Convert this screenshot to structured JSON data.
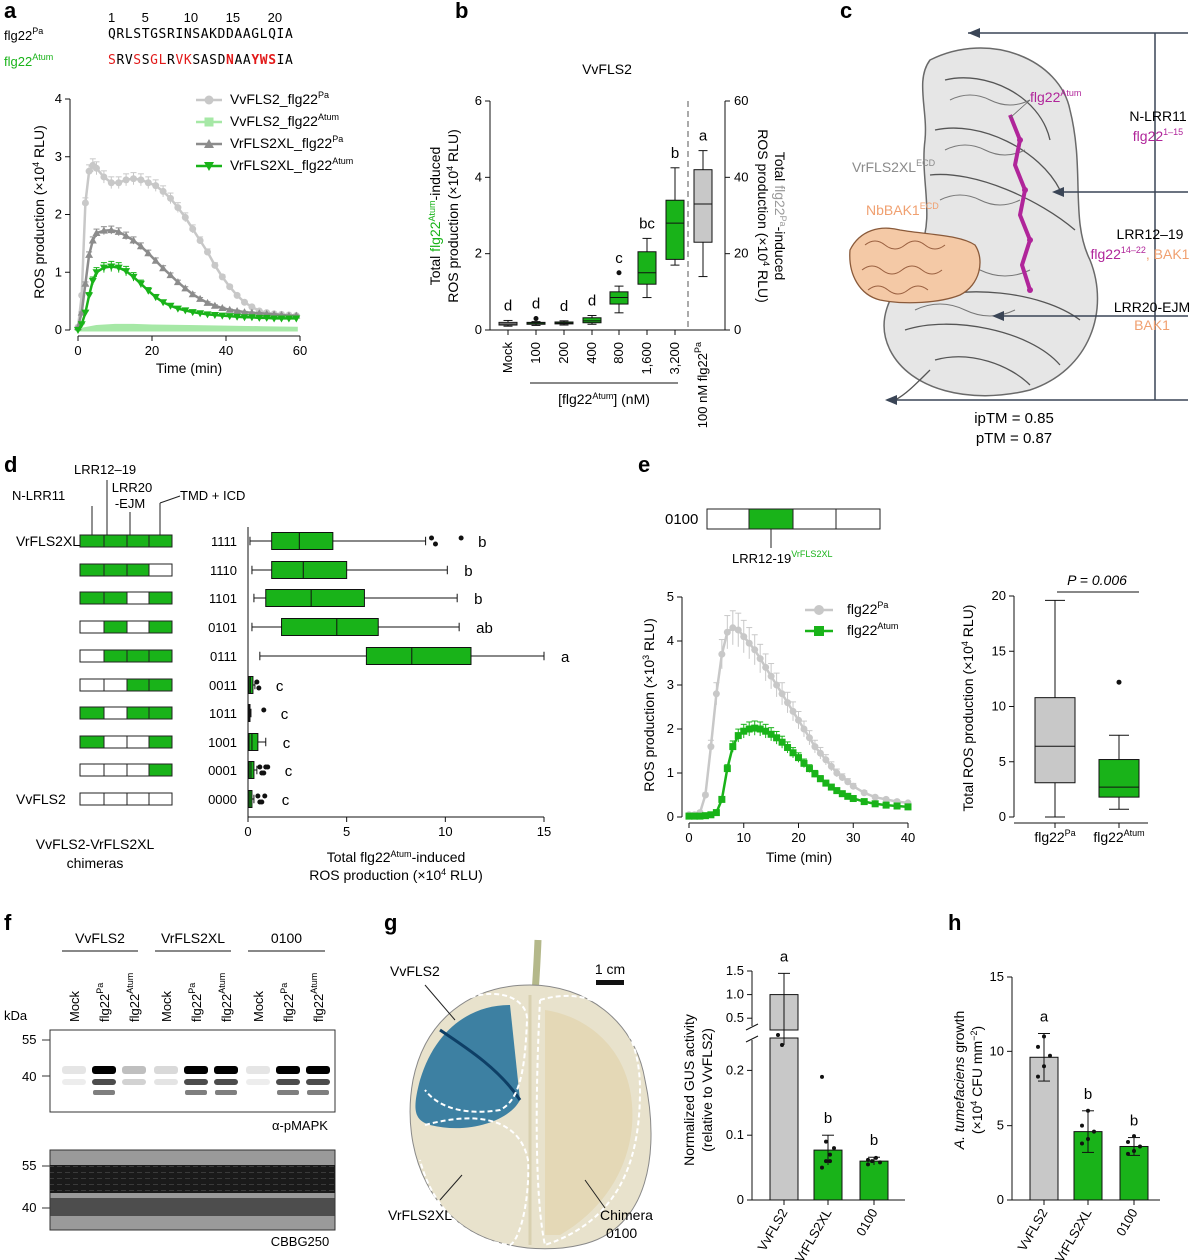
{
  "colors": {
    "green": "#19b319",
    "green_light": "#a6e8a6",
    "grey": "#c8c8c8",
    "grey_dark": "#8c8c8c",
    "magenta": "#b0259a",
    "orange": "#f0a878",
    "red": "#e21a1a"
  },
  "panel_a": {
    "label": "a",
    "seq_pa_label": "flg22",
    "seq_pa_sup": "Pa",
    "seq_atum_label": "flg22",
    "seq_atum_sup": "Atum",
    "seq_numbers": [
      "1",
      "5",
      "10",
      "15",
      "20"
    ],
    "seq_pa": "QRLSTGSRINSAKDDAAGLQIA",
    "seq_atum_parts": [
      {
        "text": "S",
        "style": "red"
      },
      {
        "text": "RV",
        "style": "black"
      },
      {
        "text": "S",
        "style": "red"
      },
      {
        "text": "S",
        "style": "black"
      },
      {
        "text": "GL",
        "style": "red"
      },
      {
        "text": "R",
        "style": "black"
      },
      {
        "text": "VK",
        "style": "red"
      },
      {
        "text": "SASD",
        "style": "black"
      },
      {
        "text": "N",
        "style": "redbold"
      },
      {
        "text": "AA",
        "style": "black"
      },
      {
        "text": "YWS",
        "style": "redbold"
      },
      {
        "text": "IA",
        "style": "black"
      }
    ],
    "legend": [
      "VvFLS2_flg22",
      "VvFLS2_flg22",
      "VrFLS2XL_flg22",
      "VrFLS2XL_flg22"
    ],
    "legend_sup": [
      "Pa",
      "Atum",
      "Pa",
      "Atum"
    ],
    "ylabel": "ROS production (×10",
    "ylabel_sup": "4",
    "ylabel_end": " RLU)",
    "xlabel": "Time (min)"
  },
  "panel_b": {
    "label": "b",
    "title": "VvFLS2",
    "ylabel_left_pre": "Total ",
    "ylabel_left_flg": "flg22",
    "ylabel_left_sup": "Atum",
    "ylabel_left_post": "-induced",
    "ylabel_left_line2": "ROS production (×10",
    "ylabel_left_sup2": "4",
    "ylabel_left_end": " RLU)",
    "ylabel_right_pre": "Total ",
    "ylabel_right_flg": "flg22",
    "ylabel_right_sup": "Pa",
    "ylabel_right_post": "-induced",
    "ylabel_right_line2": "ROS production (×10",
    "ylabel_right_sup2": "4",
    "ylabel_right_end": " RLU)",
    "categories": [
      "Mock",
      "100",
      "200",
      "400",
      "800",
      "1,600",
      "3,200"
    ],
    "last_category": "100 nM flg22",
    "last_category_sup": "Pa",
    "xlabel": "[flg22",
    "xlabel_sup": "Atum",
    "xlabel_end": "] (nM)"
  },
  "panel_c": {
    "label": "c",
    "flg_label": "flg22",
    "flg_sup": "Atum",
    "vr_label": "VrFLS2XL",
    "vr_sup": "ECD",
    "nb_label": "NbBAK1",
    "nb_sup": "ECD",
    "region1_title": "N-LRR11",
    "region1_sub": "flg22",
    "region1_sub_sup": "1–15",
    "region2_title": "LRR12–19",
    "region2_sub": "flg22",
    "region2_sub_sup": "14–22",
    "region2_bak": ", BAK1",
    "region3_title": "LRR20-EJM",
    "region3_sub": "BAK1",
    "iptm": "ipTM = 0.85",
    "ptm": "pTM = 0.87"
  },
  "panel_d": {
    "label": "d",
    "domains": [
      "LRR12–19",
      "N-LRR11",
      "LRR20",
      "-EJM",
      "TMD + ICD"
    ],
    "row_left_labels": [
      "VrFLS2XL",
      "",
      "",
      "",
      "",
      "",
      "",
      "",
      "",
      "VvFLS2"
    ],
    "codes": [
      "1111",
      "1110",
      "1101",
      "0101",
      "0111",
      "0011",
      "1011",
      "1001",
      "0001",
      "0000"
    ],
    "letters": [
      "b",
      "b",
      "b",
      "ab",
      "a",
      "c",
      "c",
      "c",
      "c",
      "c"
    ],
    "footer1": "VvFLS2-VrFLS2XL",
    "footer2": "chimeras",
    "xlabel1_pre": "Total flg22",
    "xlabel1_sup": "Atum",
    "xlabel1_post": "-induced",
    "xlabel2": "ROS production (×10",
    "xlabel2_sup": "4",
    "xlabel2_end": " RLU)"
  },
  "panel_e": {
    "label": "e",
    "code": "0100",
    "domain_label": "LRR12-19",
    "domain_sup": "VrFLS2XL",
    "legend": [
      "flg22",
      "flg22"
    ],
    "legend_sup": [
      "Pa",
      "Atum"
    ],
    "ylabel": "ROS production (×10",
    "ylabel_sup": "3",
    "ylabel_end": " RLU)",
    "xlabel": "Time (min)",
    "box_ylabel": "Total ROS production (×10",
    "box_ylabel_sup": "4",
    "box_ylabel_end": " RLU)",
    "pvalue": "P = 0.006",
    "box_cats": [
      "flg22",
      "flg22"
    ],
    "box_cats_sup": [
      "Pa",
      "Atum"
    ]
  },
  "panel_f": {
    "label": "f",
    "groups": [
      "VvFLS2",
      "VrFLS2XL",
      "0100"
    ],
    "lanes": [
      "Mock",
      "flg22",
      "flg22",
      "Mock",
      "flg22",
      "flg22",
      "Mock",
      "flg22",
      "flg22"
    ],
    "lane_sups": [
      "",
      "Pa",
      "Atum",
      "",
      "Pa",
      "Atum",
      "",
      "Pa",
      "Atum"
    ],
    "kda": "kDa",
    "markers_top": [
      "55",
      "40"
    ],
    "markers_bottom": [
      "55",
      "40"
    ],
    "blot1": "α-pMAPK",
    "blot2": "CBBG250"
  },
  "panel_g": {
    "label": "g",
    "leaf_labels": [
      "VvFLS2",
      "VrFLS2XL",
      "Chimera",
      "0100"
    ],
    "scale": "1 cm",
    "ylabel1": "Normalized GUS activity",
    "ylabel2": "(relative to VvFLS2)",
    "categories": [
      "VvFLS2",
      "VrFLS2XL",
      "0100"
    ],
    "letters": [
      "a",
      "b",
      "b"
    ],
    "yticks_top": [
      "1.5",
      "1.0",
      "0.5"
    ],
    "yticks_bottom": [
      "0.2",
      "0.1",
      "0"
    ]
  },
  "panel_h": {
    "label": "h",
    "ylabel_it": "A. tumefaciens",
    "ylabel_rest": " growth",
    "ylabel2": "(×10",
    "ylabel2_sup": "4",
    "ylabel2_mid": " CFU mm",
    "ylabel2_sup2": "−2",
    "ylabel2_end": ")",
    "categories": [
      "VvFLS2",
      "VrFLS2XL",
      "0100"
    ],
    "letters": [
      "a",
      "b",
      "b"
    ]
  },
  "chart_data": [
    {
      "id": "a",
      "type": "line",
      "title": "",
      "xlabel": "Time (min)",
      "ylabel": "ROS production (×10^4 RLU)",
      "xlim": [
        0,
        60
      ],
      "ylim": [
        0,
        4
      ],
      "series": [
        {
          "name": "VvFLS2_flg22Pa",
          "x": [
            0,
            1,
            2,
            3,
            4,
            5,
            7,
            9,
            11,
            13,
            15,
            17,
            19,
            21,
            23,
            25,
            27,
            29,
            31,
            33,
            35,
            37,
            39,
            41,
            43,
            45,
            47,
            49,
            51,
            53,
            55,
            57,
            59
          ],
          "y": [
            0.05,
            0.6,
            2.2,
            2.75,
            2.85,
            2.8,
            2.65,
            2.55,
            2.55,
            2.6,
            2.62,
            2.6,
            2.55,
            2.5,
            2.4,
            2.28,
            2.12,
            1.95,
            1.75,
            1.55,
            1.35,
            1.12,
            0.92,
            0.75,
            0.6,
            0.48,
            0.4,
            0.33,
            0.3,
            0.28,
            0.27,
            0.26,
            0.25
          ]
        },
        {
          "name": "VvFLS2_flg22Atum",
          "x": [
            0,
            5,
            10,
            15,
            20,
            30,
            40,
            50,
            59
          ],
          "y": [
            0.0,
            0.06,
            0.08,
            0.08,
            0.07,
            0.06,
            0.05,
            0.04,
            0.03
          ]
        },
        {
          "name": "VrFLS2XL_flg22Pa",
          "x": [
            0,
            1,
            2,
            3,
            4,
            5,
            7,
            9,
            11,
            13,
            15,
            17,
            19,
            21,
            23,
            25,
            27,
            29,
            31,
            33,
            35,
            37,
            39,
            41,
            43,
            45,
            47,
            49,
            51,
            53,
            55,
            57,
            59
          ],
          "y": [
            0.05,
            0.3,
            0.8,
            1.3,
            1.55,
            1.68,
            1.72,
            1.73,
            1.7,
            1.63,
            1.55,
            1.45,
            1.33,
            1.2,
            1.07,
            0.95,
            0.83,
            0.72,
            0.62,
            0.54,
            0.47,
            0.42,
            0.38,
            0.35,
            0.33,
            0.31,
            0.3,
            0.29,
            0.28,
            0.27,
            0.26,
            0.25,
            0.25
          ]
        },
        {
          "name": "VrFLS2XL_flg22Atum",
          "x": [
            0,
            1,
            2,
            3,
            4,
            5,
            7,
            9,
            11,
            13,
            15,
            17,
            19,
            21,
            23,
            25,
            27,
            29,
            31,
            33,
            35,
            37,
            39,
            41,
            43,
            45,
            47,
            49,
            51,
            53,
            55,
            57,
            59
          ],
          "y": [
            0.0,
            0.1,
            0.3,
            0.6,
            0.85,
            1.0,
            1.08,
            1.1,
            1.08,
            1.02,
            0.92,
            0.8,
            0.68,
            0.57,
            0.48,
            0.42,
            0.37,
            0.34,
            0.31,
            0.29,
            0.27,
            0.26,
            0.25,
            0.24,
            0.23,
            0.22,
            0.22,
            0.21,
            0.21,
            0.2,
            0.2,
            0.2,
            0.2
          ]
        }
      ]
    },
    {
      "id": "b",
      "type": "box",
      "title": "VvFLS2",
      "ylabel_left": "Total flg22Atum-induced ROS production (×10^4 RLU)",
      "ylabel_right": "Total flg22Pa-induced ROS production (×10^4 RLU)",
      "ylim_left": [
        0,
        6
      ],
      "ylim_right": [
        0,
        60
      ],
      "categories": [
        "Mock",
        "100",
        "200",
        "400",
        "800",
        "1,600",
        "3,200",
        "100 nM flg22Pa"
      ],
      "boxes": [
        {
          "min": 0.1,
          "q1": 0.13,
          "median": 0.16,
          "q3": 0.2,
          "max": 0.25,
          "outliers": []
        },
        {
          "min": 0.12,
          "q1": 0.15,
          "median": 0.18,
          "q3": 0.2,
          "max": 0.22,
          "outliers": [
            0.3
          ]
        },
        {
          "min": 0.13,
          "q1": 0.16,
          "median": 0.18,
          "q3": 0.21,
          "max": 0.24,
          "outliers": []
        },
        {
          "min": 0.15,
          "q1": 0.19,
          "median": 0.24,
          "q3": 0.32,
          "max": 0.38,
          "outliers": []
        },
        {
          "min": 0.45,
          "q1": 0.68,
          "median": 0.85,
          "q3": 1.0,
          "max": 1.15,
          "outliers": [
            1.5
          ]
        },
        {
          "min": 0.85,
          "q1": 1.2,
          "median": 1.5,
          "q3": 2.05,
          "max": 2.4,
          "outliers": []
        },
        {
          "min": 1.7,
          "q1": 1.85,
          "median": 2.8,
          "q3": 3.4,
          "max": 4.25,
          "outliers": []
        },
        {
          "min": 14,
          "q1": 23,
          "median": 33,
          "q3": 42,
          "max": 47,
          "outliers": [],
          "axis": "right"
        }
      ],
      "letters": [
        "d",
        "d",
        "d",
        "d",
        "c",
        "bc",
        "b",
        "a"
      ]
    },
    {
      "id": "d",
      "type": "box",
      "xlabel": "Total flg22Atum-induced ROS production (×10^4 RLU)",
      "xlim": [
        0,
        15
      ],
      "categories": [
        "1111",
        "1110",
        "1101",
        "0101",
        "0111",
        "0011",
        "1011",
        "1001",
        "0001",
        "0000"
      ],
      "boxes": [
        {
          "min": 0.1,
          "q1": 1.2,
          "median": 2.6,
          "q3": 4.3,
          "max": 9.0,
          "outliers": [
            9.3,
            9.5,
            10.8
          ]
        },
        {
          "min": 0.2,
          "q1": 1.2,
          "median": 2.8,
          "q3": 5.0,
          "max": 10.1,
          "outliers": []
        },
        {
          "min": 0.3,
          "q1": 0.9,
          "median": 3.2,
          "q3": 5.9,
          "max": 10.6,
          "outliers": []
        },
        {
          "min": 0.2,
          "q1": 1.7,
          "median": 4.5,
          "q3": 6.6,
          "max": 10.7,
          "outliers": []
        },
        {
          "min": 0.6,
          "q1": 6.0,
          "median": 8.3,
          "q3": 11.3,
          "max": 15.0,
          "outliers": []
        },
        {
          "min": 0.0,
          "q1": 0.05,
          "median": 0.12,
          "q3": 0.25,
          "max": 0.35,
          "outliers": [
            0.45,
            0.55
          ]
        },
        {
          "min": 0.0,
          "q1": 0.02,
          "median": 0.05,
          "q3": 0.1,
          "max": 0.15,
          "outliers": [
            0.8
          ]
        },
        {
          "min": 0.0,
          "q1": 0.05,
          "median": 0.2,
          "q3": 0.5,
          "max": 0.9,
          "outliers": []
        },
        {
          "min": 0.0,
          "q1": 0.05,
          "median": 0.15,
          "q3": 0.3,
          "max": 0.45,
          "outliers": [
            0.6,
            0.8,
            1.0,
            0.7,
            0.9
          ]
        },
        {
          "min": 0.0,
          "q1": 0.02,
          "median": 0.1,
          "q3": 0.2,
          "max": 0.3,
          "outliers": [
            0.5,
            0.7,
            0.85,
            0.6
          ]
        }
      ],
      "letters": [
        "b",
        "b",
        "b",
        "ab",
        "a",
        "c",
        "c",
        "c",
        "c",
        "c"
      ]
    },
    {
      "id": "e_left",
      "type": "line",
      "xlabel": "Time (min)",
      "ylabel": "ROS production (×10^3 RLU)",
      "xlim": [
        0,
        40
      ],
      "ylim": [
        0,
        5
      ],
      "series": [
        {
          "name": "flg22Pa",
          "x": [
            0,
            1,
            2,
            3,
            4,
            5,
            6,
            7,
            8,
            9,
            10,
            11,
            12,
            13,
            14,
            15,
            16,
            17,
            18,
            19,
            20,
            21,
            22,
            23,
            24,
            25,
            26,
            27,
            28,
            29,
            30,
            32,
            34,
            36,
            38,
            40
          ],
          "y": [
            0.05,
            0.05,
            0.1,
            0.5,
            1.6,
            2.8,
            3.7,
            4.2,
            4.3,
            4.25,
            4.1,
            3.95,
            3.8,
            3.6,
            3.4,
            3.2,
            3.0,
            2.8,
            2.6,
            2.4,
            2.2,
            2.0,
            1.8,
            1.6,
            1.45,
            1.3,
            1.15,
            1.0,
            0.9,
            0.8,
            0.7,
            0.55,
            0.45,
            0.4,
            0.35,
            0.32
          ]
        },
        {
          "name": "flg22Atum",
          "x": [
            0,
            1,
            2,
            3,
            4,
            5,
            6,
            7,
            8,
            9,
            10,
            11,
            12,
            13,
            14,
            15,
            16,
            17,
            18,
            19,
            20,
            21,
            22,
            23,
            24,
            25,
            26,
            27,
            28,
            29,
            30,
            32,
            34,
            36,
            38,
            40
          ],
          "y": [
            0.02,
            0.02,
            0.02,
            0.03,
            0.05,
            0.1,
            0.4,
            1.1,
            1.6,
            1.85,
            1.95,
            2.0,
            2.02,
            2.0,
            1.95,
            1.88,
            1.8,
            1.7,
            1.58,
            1.46,
            1.35,
            1.22,
            1.1,
            0.98,
            0.87,
            0.77,
            0.68,
            0.6,
            0.53,
            0.47,
            0.42,
            0.35,
            0.3,
            0.27,
            0.25,
            0.23
          ]
        }
      ]
    },
    {
      "id": "e_right",
      "type": "box",
      "ylabel": "Total ROS production (×10^4 RLU)",
      "ylim": [
        0,
        20
      ],
      "categories": [
        "flg22Pa",
        "flg22Atum"
      ],
      "boxes": [
        {
          "min": 0.0,
          "q1": 3.1,
          "median": 6.4,
          "q3": 10.8,
          "max": 19.6,
          "outliers": []
        },
        {
          "min": 0.7,
          "q1": 1.8,
          "median": 2.7,
          "q3": 5.2,
          "max": 7.4,
          "outliers": [
            12.2
          ]
        }
      ],
      "annotation": "P = 0.006"
    },
    {
      "id": "g",
      "type": "bar",
      "ylabel": "Normalized GUS activity (relative to VvFLS2)",
      "categories": [
        "VvFLS2",
        "VrFLS2XL",
        "0100"
      ],
      "values": [
        1.0,
        0.077,
        0.06
      ],
      "errors": [
        0.45,
        0.023,
        0.006
      ],
      "letters": [
        "a",
        "b",
        "b"
      ],
      "y_axis_broken": true,
      "ylim_lower": [
        0,
        0.25
      ],
      "ylim_upper": [
        0.25,
        1.5
      ]
    },
    {
      "id": "h",
      "type": "bar",
      "ylabel": "A. tumefaciens growth (×10^4 CFU mm^-2)",
      "ylim": [
        0,
        15
      ],
      "categories": [
        "VvFLS2",
        "VrFLS2XL",
        "0100"
      ],
      "values": [
        9.6,
        4.6,
        3.6
      ],
      "errors": [
        1.6,
        1.4,
        0.6
      ],
      "points": [
        [
          8.3,
          9.0,
          9.7,
          10.3,
          11.0
        ],
        [
          3.8,
          4.1,
          4.6,
          5.0,
          6.0
        ],
        [
          3.1,
          3.3,
          3.6,
          3.9,
          4.3
        ]
      ],
      "letters": [
        "a",
        "b",
        "b"
      ]
    }
  ]
}
